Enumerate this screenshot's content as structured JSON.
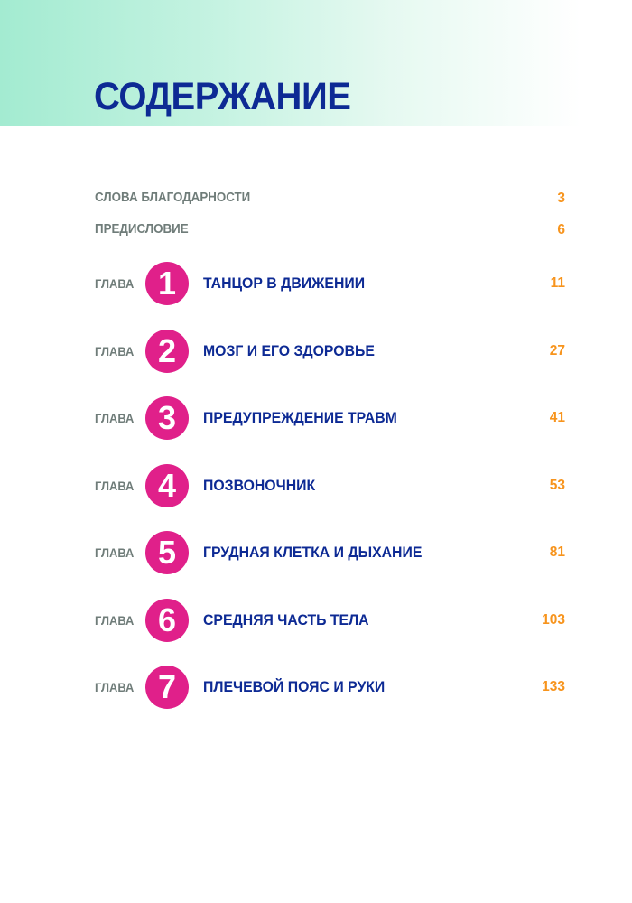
{
  "header": {
    "title": "СОДЕРЖАНИЕ"
  },
  "colors": {
    "title": "#0d2a94",
    "chapter_circle": "#e0208a",
    "page_number": "#f7941d",
    "label": "#6f7c79"
  },
  "front_matter": [
    {
      "label": "СЛОВА БЛАГОДАРНОСТИ",
      "page": "3"
    },
    {
      "label": "ПРЕДИСЛОВИЕ",
      "page": "6"
    }
  ],
  "chapters": [
    {
      "prefix": "ГЛАВА",
      "number": "1",
      "title": "ТАНЦОР В ДВИЖЕНИИ",
      "page": "11"
    },
    {
      "prefix": "ГЛАВА",
      "number": "2",
      "title": "МОЗГ И ЕГО ЗДОРОВЬЕ",
      "page": "27"
    },
    {
      "prefix": "ГЛАВА",
      "number": "3",
      "title": "ПРЕДУПРЕЖДЕНИЕ ТРАВМ",
      "page": "41"
    },
    {
      "prefix": "ГЛАВА",
      "number": "4",
      "title": "ПОЗВОНОЧНИК",
      "page": "53"
    },
    {
      "prefix": "ГЛАВА",
      "number": "5",
      "title": "ГРУДНАЯ КЛЕТКА И ДЫХАНИЕ",
      "page": "81"
    },
    {
      "prefix": "ГЛАВА",
      "number": "6",
      "title": "СРЕДНЯЯ ЧАСТЬ ТЕЛА",
      "page": "103"
    },
    {
      "prefix": "ГЛАВА",
      "number": "7",
      "title": "ПЛЕЧЕВОЙ ПОЯС И РУКИ",
      "page": "133"
    }
  ]
}
